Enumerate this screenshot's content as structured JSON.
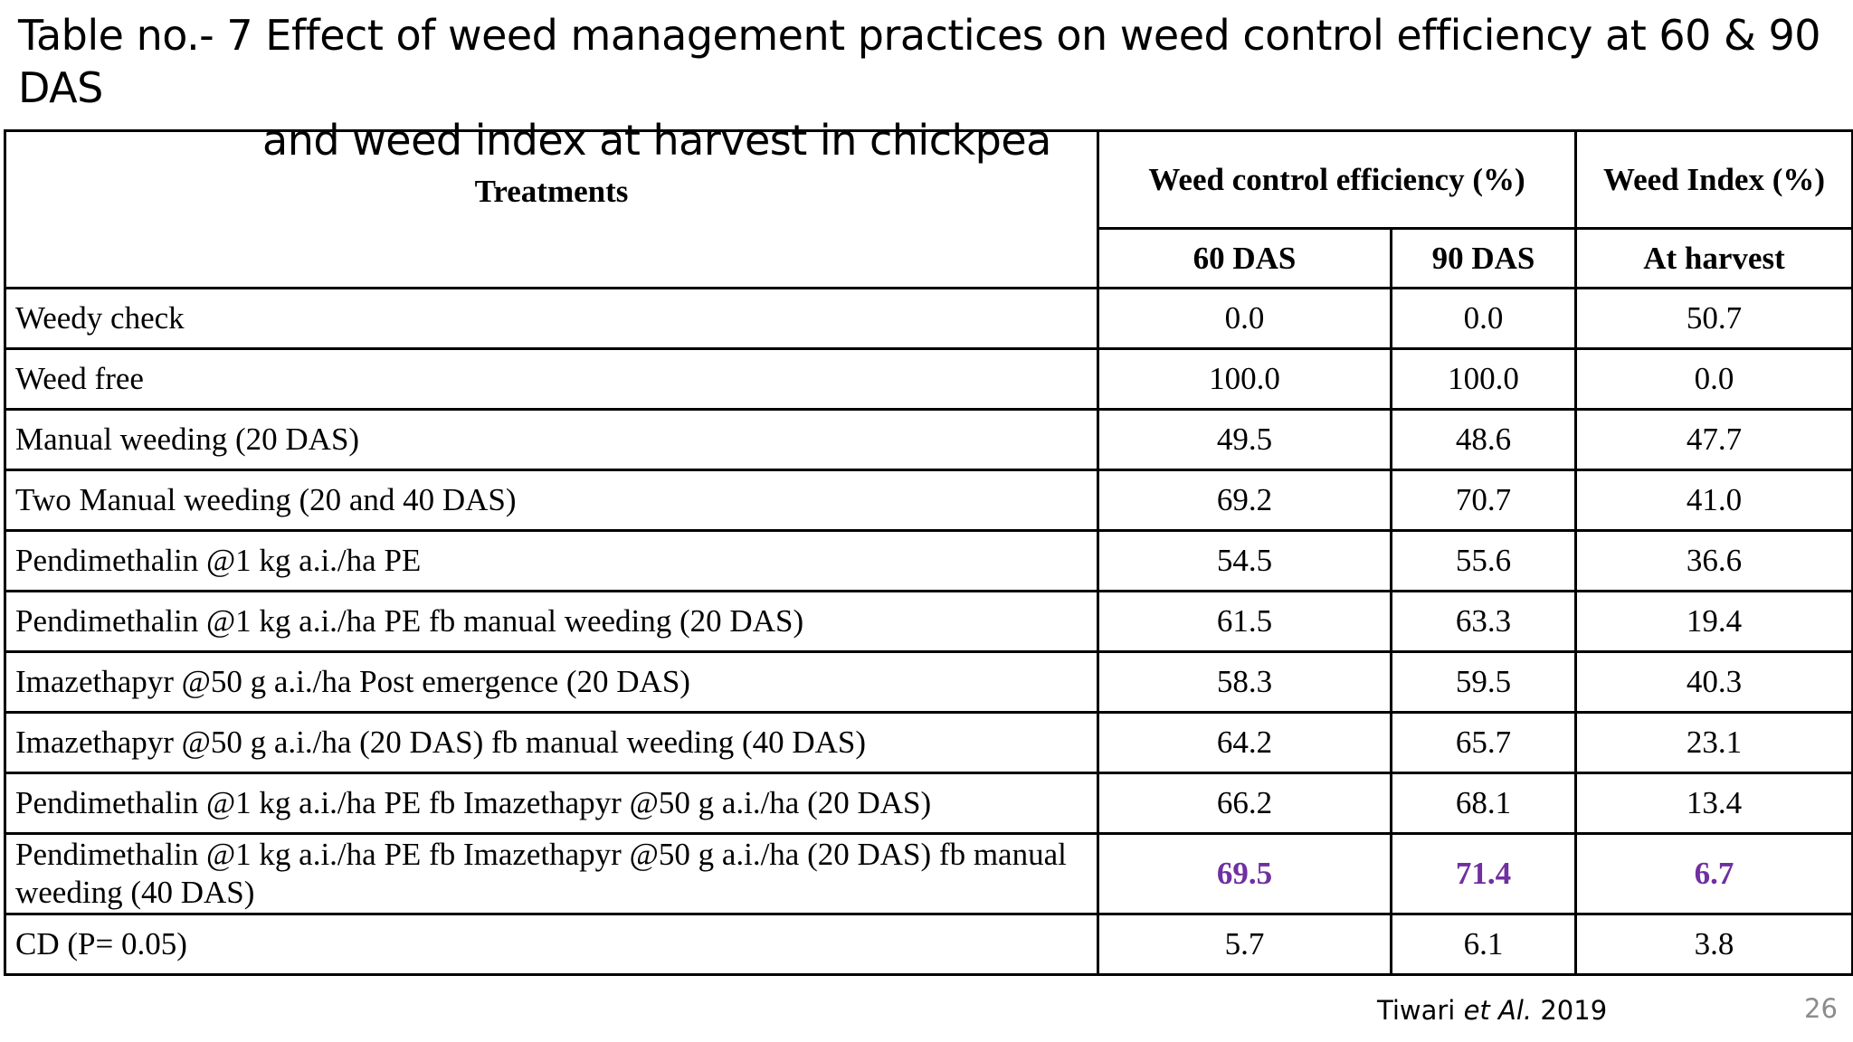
{
  "slide": {
    "title_line1": "Table  no.- 7 Effect of weed management practices on weed control efficiency at 60 & 90 DAS",
    "title_line2": "and weed index at harvest in chickpea",
    "citation_author": "Tiwari ",
    "citation_etal": "et  Al.",
    "citation_year": " 2019",
    "page_number": "26",
    "highlight_color": "#7030a0"
  },
  "table": {
    "header": {
      "treatments": "Treatments",
      "wce": "Weed control efficiency (%)",
      "wi": "Weed Index (%)",
      "das60": "60 DAS",
      "das90": "90 DAS",
      "harvest": "At harvest"
    },
    "rows": [
      {
        "treatment": "Weedy check",
        "das60": "0.0",
        "das90": "0.0",
        "harvest": "50.7"
      },
      {
        "treatment": "Weed free",
        "das60": "100.0",
        "das90": "100.0",
        "harvest": "0.0"
      },
      {
        "treatment": "Manual weeding (20 DAS)",
        "das60": "49.5",
        "das90": "48.6",
        "harvest": "47.7"
      },
      {
        "treatment": "Two Manual weeding (20 and 40 DAS)",
        "das60": "69.2",
        "das90": "70.7",
        "harvest": "41.0"
      },
      {
        "treatment": "Pendimethalin @1 kg a.i./ha PE",
        "das60": "54.5",
        "das90": "55.6",
        "harvest": "36.6"
      },
      {
        "treatment": "Pendimethalin @1 kg a.i./ha PE fb manual weeding (20 DAS)",
        "das60": "61.5",
        "das90": "63.3",
        "harvest": "19.4"
      },
      {
        "treatment": "Imazethapyr @50 g a.i./ha Post emergence (20 DAS)",
        "das60": "58.3",
        "das90": "59.5",
        "harvest": "40.3"
      },
      {
        "treatment": "Imazethapyr @50 g a.i./ha (20 DAS) fb manual weeding (40 DAS)",
        "das60": "64.2",
        "das90": "65.7",
        "harvest": "23.1"
      },
      {
        "treatment": "Pendimethalin @1 kg a.i./ha PE fb Imazethapyr @50 g a.i./ha (20 DAS)",
        "das60": "66.2",
        "das90": "68.1",
        "harvest": "13.4"
      },
      {
        "treatment": "Pendimethalin @1 kg a.i./ha PE fb Imazethapyr @50 g a.i./ha (20 DAS) fb manual weeding (40 DAS)",
        "das60": "69.5",
        "das90": "71.4",
        "harvest": "6.7"
      },
      {
        "treatment": "CD (P= 0.05)",
        "das60": "5.7",
        "das90": "6.1",
        "harvest": "3.8"
      }
    ]
  }
}
